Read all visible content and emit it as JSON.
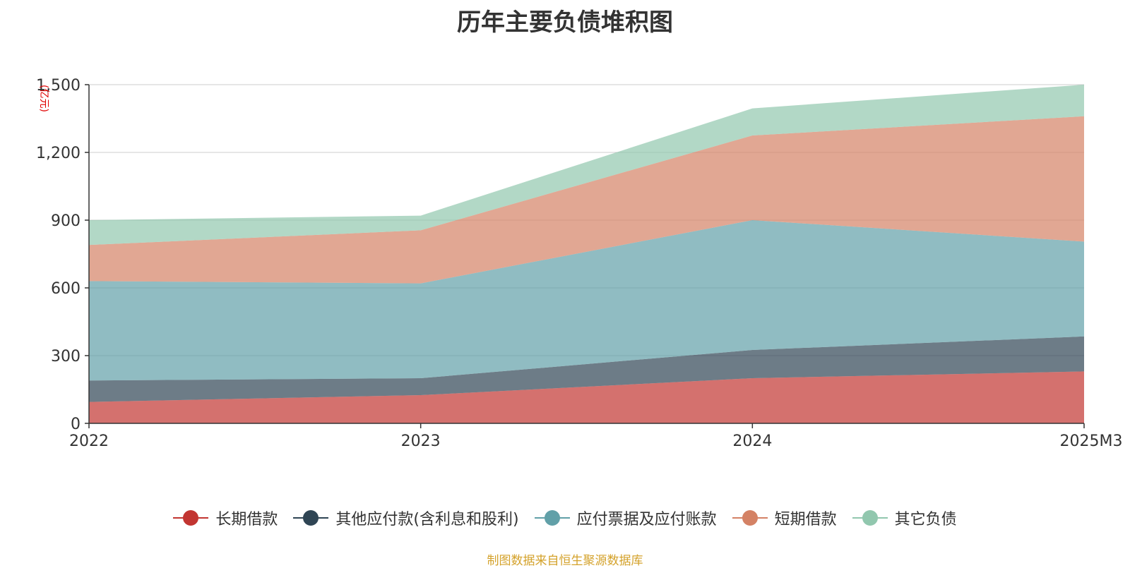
{
  "page": {
    "source_note": "制图数据来自恒生聚源数据库"
  },
  "chart_data": {
    "type": "area",
    "stacked": true,
    "title": "历年主要负债堆积图",
    "ylabel": "(亿元)",
    "xlabel": "",
    "categories": [
      "2022",
      "2023",
      "2024",
      "2025M3"
    ],
    "ylim": [
      0,
      1500
    ],
    "yticks": [
      "0",
      "300",
      "600",
      "900",
      "1,200",
      "1,500"
    ],
    "grid": true,
    "legend_position": "bottom",
    "series": [
      {
        "name": "长期借款",
        "color": "#c23531",
        "values": [
          95,
          125,
          200,
          230
        ]
      },
      {
        "name": "其他应付款(含利息和股利)",
        "color": "#2f4554",
        "values": [
          95,
          75,
          125,
          155
        ]
      },
      {
        "name": "应付票据及应付账款",
        "color": "#61a0a8",
        "values": [
          440,
          420,
          575,
          420
        ]
      },
      {
        "name": "短期借款",
        "color": "#d48265",
        "values": [
          160,
          235,
          375,
          555
        ]
      },
      {
        "name": "其它负债",
        "color": "#91c7ae",
        "values": [
          110,
          65,
          120,
          140
        ]
      }
    ]
  }
}
